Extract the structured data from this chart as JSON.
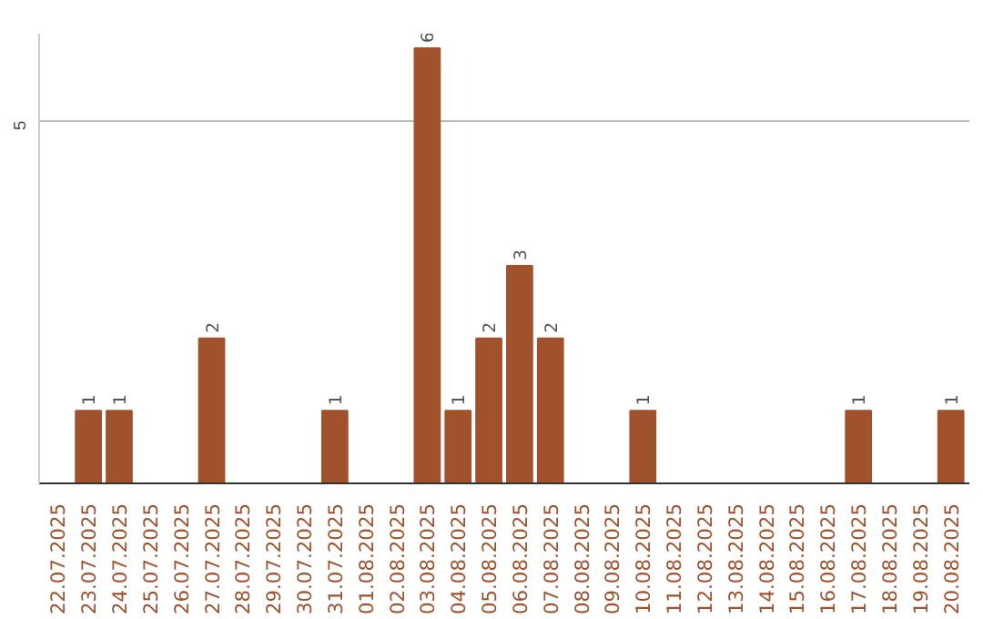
{
  "chart_data": {
    "type": "bar",
    "categories": [
      "22.07.2025",
      "23.07.2025",
      "24.07.2025",
      "25.07.2025",
      "26.07.2025",
      "27.07.2025",
      "28.07.2025",
      "29.07.2025",
      "30.07.2025",
      "31.07.2025",
      "01.08.2025",
      "02.08.2025",
      "03.08.2025",
      "04.08.2025",
      "05.08.2025",
      "06.08.2025",
      "07.08.2025",
      "08.08.2025",
      "09.08.2025",
      "10.08.2025",
      "11.08.2025",
      "12.08.2025",
      "13.08.2025",
      "14.08.2025",
      "15.08.2025",
      "16.08.2025",
      "17.08.2025",
      "18.08.2025",
      "19.08.2025",
      "20.08.2025"
    ],
    "values": [
      0,
      1,
      1,
      0,
      0,
      2,
      0,
      0,
      0,
      1,
      0,
      0,
      6,
      1,
      2,
      3,
      2,
      0,
      0,
      1,
      0,
      0,
      0,
      0,
      0,
      0,
      1,
      0,
      0,
      1
    ],
    "value_labels": [
      null,
      "1",
      "1",
      null,
      null,
      "2",
      null,
      null,
      null,
      "1",
      null,
      null,
      "6",
      "1",
      "2",
      "3",
      "2",
      null,
      null,
      "1",
      null,
      null,
      null,
      null,
      null,
      null,
      "1",
      null,
      null,
      "1"
    ],
    "color": "#a0522d",
    "ylim": [
      0,
      6.2
    ],
    "yticks": [
      5
    ],
    "grid": "y"
  }
}
